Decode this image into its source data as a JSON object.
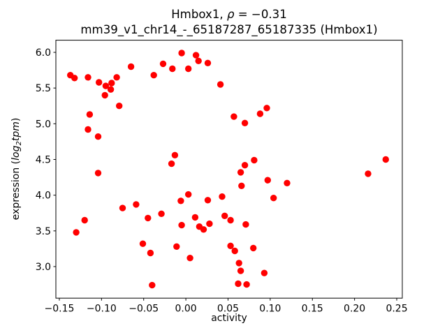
{
  "figure": {
    "title_line1": {
      "prefix": "Hmbox1, ",
      "rho": "ρ",
      "suffix": " = −0.31"
    },
    "title_line2": "mm39_v1_chr14_-_65187287_65187335 (Hmbox1)",
    "xlabel": "activity",
    "ylabel": {
      "prefix": "expression (",
      "log": "log",
      "sub": "2",
      "tpm": "tpm",
      "suffix": ")"
    }
  },
  "chart_data": {
    "type": "scatter",
    "title": "Hmbox1, ρ = −0.31",
    "subtitle": "mm39_v1_chr14_-_65187287_65187335 (Hmbox1)",
    "xlabel": "activity",
    "ylabel": "expression (log2 tpm)",
    "marker_color": "#ff0000",
    "marker_radius_px": 4.7,
    "grid": false,
    "legend": null,
    "xlim": [
      -0.1541,
      0.2566
    ],
    "ylim": [
      2.558,
      6.17
    ],
    "xticks": {
      "values": [
        -0.15,
        -0.1,
        -0.05,
        0.0,
        0.05,
        0.1,
        0.15,
        0.2,
        0.25
      ],
      "labels": [
        "−0.15",
        "−0.10",
        "−0.05",
        "0.00",
        "0.05",
        "0.10",
        "0.15",
        "0.20",
        "0.25"
      ]
    },
    "yticks": {
      "values": [
        3.0,
        3.5,
        4.0,
        4.5,
        5.0,
        5.5,
        6.0
      ],
      "labels": [
        "3.0",
        "3.5",
        "4.0",
        "4.5",
        "5.0",
        "5.5",
        "6.0"
      ]
    },
    "points": [
      [
        -0.137,
        5.68
      ],
      [
        -0.132,
        5.64
      ],
      [
        -0.116,
        5.65
      ],
      [
        -0.103,
        5.58
      ],
      [
        -0.095,
        5.53
      ],
      [
        -0.088,
        5.57
      ],
      [
        -0.089,
        5.48
      ],
      [
        -0.096,
        5.4
      ],
      [
        -0.082,
        5.65
      ],
      [
        -0.065,
        5.8
      ],
      [
        -0.038,
        5.68
      ],
      [
        -0.027,
        5.84
      ],
      [
        -0.016,
        5.77
      ],
      [
        -0.079,
        5.25
      ],
      [
        -0.114,
        5.13
      ],
      [
        -0.116,
        4.92
      ],
      [
        -0.104,
        4.82
      ],
      [
        -0.104,
        4.31
      ],
      [
        -0.013,
        4.56
      ],
      [
        -0.017,
        4.44
      ],
      [
        -0.075,
        3.82
      ],
      [
        -0.059,
        3.87
      ],
      [
        -0.12,
        3.65
      ],
      [
        -0.13,
        3.48
      ],
      [
        -0.045,
        3.68
      ],
      [
        -0.029,
        3.74
      ],
      [
        -0.051,
        3.32
      ],
      [
        -0.042,
        3.19
      ],
      [
        -0.04,
        2.74
      ],
      [
        -0.005,
        5.99
      ],
      [
        0.012,
        5.96
      ],
      [
        0.015,
        5.88
      ],
      [
        0.026,
        5.85
      ],
      [
        0.003,
        5.77
      ],
      [
        0.041,
        5.55
      ],
      [
        0.057,
        5.1
      ],
      [
        0.07,
        5.01
      ],
      [
        0.088,
        5.14
      ],
      [
        0.096,
        5.22
      ],
      [
        0.081,
        4.49
      ],
      [
        0.07,
        4.42
      ],
      [
        0.065,
        4.32
      ],
      [
        0.097,
        4.21
      ],
      [
        0.12,
        4.17
      ],
      [
        0.066,
        4.13
      ],
      [
        0.104,
        3.96
      ],
      [
        0.003,
        4.01
      ],
      [
        -0.006,
        3.92
      ],
      [
        0.026,
        3.93
      ],
      [
        0.043,
        3.98
      ],
      [
        0.011,
        3.69
      ],
      [
        -0.005,
        3.58
      ],
      [
        0.016,
        3.56
      ],
      [
        0.021,
        3.52
      ],
      [
        0.028,
        3.6
      ],
      [
        0.046,
        3.71
      ],
      [
        0.053,
        3.65
      ],
      [
        0.071,
        3.59
      ],
      [
        -0.011,
        3.28
      ],
      [
        0.005,
        3.12
      ],
      [
        0.053,
        3.29
      ],
      [
        0.058,
        3.22
      ],
      [
        0.08,
        3.26
      ],
      [
        0.063,
        3.05
      ],
      [
        0.065,
        2.94
      ],
      [
        0.093,
        2.91
      ],
      [
        0.062,
        2.76
      ],
      [
        0.072,
        2.75
      ],
      [
        0.237,
        4.5
      ],
      [
        0.216,
        4.3
      ]
    ]
  }
}
